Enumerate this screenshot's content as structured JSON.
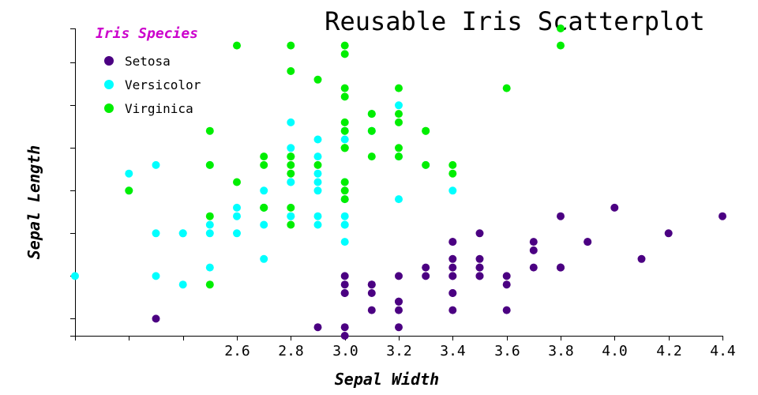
{
  "chart_data": {
    "type": "scatter",
    "title": "Reusable Iris Scatterplot",
    "xlabel": "Sepal Width",
    "ylabel": "Sepal Length",
    "xlim": [
      2.0,
      4.4
    ],
    "ylim": [
      4.3,
      7.9
    ],
    "x_ticks": [
      2.6,
      2.8,
      3.0,
      3.2,
      3.4,
      3.6,
      3.8,
      4.0,
      4.2,
      4.4
    ],
    "x_tick_labels": [
      "2.6",
      "2.8",
      "3.0",
      "3.2",
      "3.4",
      "3.6",
      "3.8",
      "4.0",
      "4.2",
      "4.4"
    ],
    "y_ticks": [
      4.5,
      5.0,
      5.5,
      6.0,
      6.5,
      7.0,
      7.5
    ],
    "legend": {
      "title": "Iris Species",
      "title_color": "#cc00cc",
      "position": "top-left",
      "entries": [
        "Setosa",
        "Versicolor",
        "Virginica"
      ]
    },
    "series": [
      {
        "name": "Setosa",
        "color": "#4b0082",
        "points": [
          [
            3.5,
            5.1
          ],
          [
            3.0,
            4.9
          ],
          [
            3.2,
            4.7
          ],
          [
            3.1,
            4.6
          ],
          [
            3.6,
            5.0
          ],
          [
            3.9,
            5.4
          ],
          [
            3.4,
            4.6
          ],
          [
            3.4,
            5.0
          ],
          [
            2.9,
            4.4
          ],
          [
            3.1,
            4.9
          ],
          [
            3.7,
            5.4
          ],
          [
            3.4,
            4.8
          ],
          [
            3.0,
            4.8
          ],
          [
            3.0,
            4.3
          ],
          [
            4.0,
            5.8
          ],
          [
            4.4,
            5.7
          ],
          [
            3.9,
            5.4
          ],
          [
            3.5,
            5.1
          ],
          [
            3.8,
            5.7
          ],
          [
            3.8,
            5.1
          ],
          [
            3.4,
            5.4
          ],
          [
            3.7,
            5.1
          ],
          [
            3.6,
            4.6
          ],
          [
            3.3,
            5.1
          ],
          [
            3.4,
            4.8
          ],
          [
            3.0,
            5.0
          ],
          [
            3.4,
            5.0
          ],
          [
            3.5,
            5.2
          ],
          [
            3.4,
            5.2
          ],
          [
            3.2,
            4.7
          ],
          [
            3.1,
            4.8
          ],
          [
            3.4,
            5.4
          ],
          [
            4.1,
            5.2
          ],
          [
            4.2,
            5.5
          ],
          [
            3.1,
            4.9
          ],
          [
            3.2,
            5.0
          ],
          [
            3.5,
            5.5
          ],
          [
            3.6,
            4.9
          ],
          [
            3.0,
            4.4
          ],
          [
            3.4,
            5.1
          ],
          [
            3.5,
            5.0
          ],
          [
            2.3,
            4.5
          ],
          [
            3.2,
            4.4
          ],
          [
            3.5,
            5.0
          ],
          [
            3.8,
            5.1
          ],
          [
            3.0,
            4.8
          ],
          [
            3.8,
            5.1
          ],
          [
            3.2,
            4.6
          ],
          [
            3.7,
            5.3
          ],
          [
            3.3,
            5.0
          ]
        ]
      },
      {
        "name": "Versicolor",
        "color": "#00ffff",
        "points": [
          [
            3.2,
            7.0
          ],
          [
            3.2,
            6.4
          ],
          [
            3.1,
            6.9
          ],
          [
            2.3,
            5.5
          ],
          [
            2.8,
            6.5
          ],
          [
            2.8,
            5.7
          ],
          [
            3.3,
            6.3
          ],
          [
            2.4,
            4.9
          ],
          [
            2.9,
            6.6
          ],
          [
            2.7,
            5.2
          ],
          [
            2.0,
            5.0
          ],
          [
            3.0,
            5.9
          ],
          [
            2.2,
            6.0
          ],
          [
            2.9,
            6.1
          ],
          [
            2.9,
            5.6
          ],
          [
            3.1,
            6.7
          ],
          [
            3.0,
            5.6
          ],
          [
            2.7,
            5.8
          ],
          [
            2.2,
            6.2
          ],
          [
            2.5,
            5.6
          ],
          [
            3.2,
            5.9
          ],
          [
            2.8,
            6.1
          ],
          [
            2.5,
            6.3
          ],
          [
            2.8,
            6.1
          ],
          [
            2.9,
            6.4
          ],
          [
            3.0,
            6.6
          ],
          [
            2.8,
            6.8
          ],
          [
            3.0,
            6.7
          ],
          [
            2.9,
            6.0
          ],
          [
            2.6,
            5.7
          ],
          [
            2.4,
            5.5
          ],
          [
            2.4,
            5.5
          ],
          [
            2.7,
            5.8
          ],
          [
            2.7,
            6.0
          ],
          [
            3.0,
            5.4
          ],
          [
            3.4,
            6.0
          ],
          [
            3.1,
            6.7
          ],
          [
            2.3,
            6.3
          ],
          [
            3.0,
            5.6
          ],
          [
            2.5,
            5.5
          ],
          [
            2.6,
            5.5
          ],
          [
            3.0,
            6.1
          ],
          [
            2.6,
            5.8
          ],
          [
            2.3,
            5.0
          ],
          [
            2.7,
            5.6
          ],
          [
            3.0,
            5.7
          ],
          [
            2.9,
            5.7
          ],
          [
            2.9,
            6.2
          ],
          [
            2.5,
            5.1
          ],
          [
            2.8,
            5.7
          ]
        ]
      },
      {
        "name": "Virginica",
        "color": "#00ee00",
        "points": [
          [
            3.3,
            6.3
          ],
          [
            2.7,
            5.8
          ],
          [
            3.0,
            7.1
          ],
          [
            2.9,
            6.3
          ],
          [
            3.0,
            6.5
          ],
          [
            3.0,
            7.6
          ],
          [
            2.5,
            4.9
          ],
          [
            2.9,
            7.3
          ],
          [
            2.5,
            6.7
          ],
          [
            3.6,
            7.2
          ],
          [
            3.2,
            6.5
          ],
          [
            2.7,
            6.4
          ],
          [
            3.0,
            6.8
          ],
          [
            2.5,
            5.7
          ],
          [
            2.8,
            5.8
          ],
          [
            3.2,
            6.4
          ],
          [
            3.0,
            6.5
          ],
          [
            3.8,
            7.7
          ],
          [
            2.6,
            7.7
          ],
          [
            2.2,
            6.0
          ],
          [
            3.2,
            6.9
          ],
          [
            2.8,
            5.6
          ],
          [
            2.8,
            7.7
          ],
          [
            2.7,
            6.3
          ],
          [
            3.3,
            6.7
          ],
          [
            3.2,
            7.2
          ],
          [
            2.8,
            6.2
          ],
          [
            3.0,
            6.1
          ],
          [
            2.8,
            6.4
          ],
          [
            3.0,
            7.2
          ],
          [
            2.8,
            7.4
          ],
          [
            3.8,
            7.9
          ],
          [
            2.8,
            6.4
          ],
          [
            2.8,
            6.3
          ],
          [
            2.6,
            6.1
          ],
          [
            3.0,
            7.7
          ],
          [
            3.4,
            6.3
          ],
          [
            3.1,
            6.4
          ],
          [
            3.0,
            6.0
          ],
          [
            3.1,
            6.9
          ],
          [
            3.1,
            6.7
          ],
          [
            3.1,
            6.9
          ],
          [
            2.7,
            5.8
          ],
          [
            3.2,
            6.8
          ],
          [
            3.3,
            6.7
          ],
          [
            3.0,
            6.7
          ],
          [
            2.5,
            6.3
          ],
          [
            3.0,
            6.5
          ],
          [
            3.4,
            6.2
          ],
          [
            3.0,
            5.9
          ]
        ]
      }
    ]
  }
}
